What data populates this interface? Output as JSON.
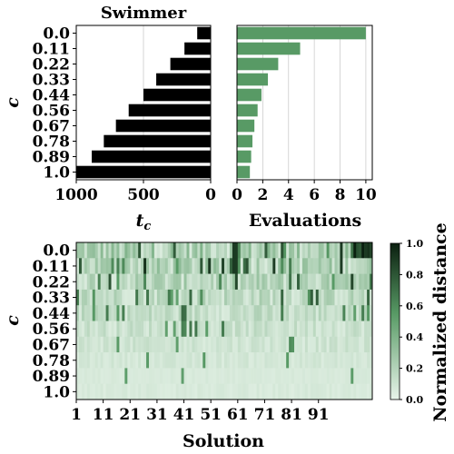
{
  "chart_data": [
    {
      "type": "bar",
      "orientation": "horizontal",
      "title": "Swimmer",
      "ylabel": "c",
      "xlabel": "t_c",
      "categories": [
        "0.0",
        "0.11",
        "0.22",
        "0.33",
        "0.44",
        "0.56",
        "0.67",
        "0.78",
        "0.89",
        "1.0"
      ],
      "values": [
        100,
        195,
        300,
        405,
        500,
        610,
        705,
        795,
        885,
        1000
      ],
      "xlim": [
        1000,
        0
      ],
      "x_inverted": true,
      "xticks": [
        "1000",
        "500",
        "0"
      ],
      "grid": true,
      "color": "#000000"
    },
    {
      "type": "bar",
      "orientation": "horizontal",
      "xlabel": "Evaluations",
      "categories": [
        "0.0",
        "0.11",
        "0.22",
        "0.33",
        "0.44",
        "0.56",
        "0.67",
        "0.78",
        "0.89",
        "1.0"
      ],
      "values": [
        10,
        4.9,
        3.2,
        2.4,
        1.9,
        1.6,
        1.35,
        1.2,
        1.1,
        1.0
      ],
      "xlim": [
        0,
        10.5
      ],
      "xticks": [
        "0",
        "2",
        "4",
        "6",
        "8",
        "10"
      ],
      "grid": true,
      "color": "#589a65"
    },
    {
      "type": "heatmap",
      "ylabel": "c",
      "xlabel": "Solution",
      "y_categories": [
        "0.0",
        "0.11",
        "0.22",
        "0.33",
        "0.44",
        "0.56",
        "0.67",
        "0.78",
        "0.89",
        "1.0"
      ],
      "x_count": 110,
      "xticks": [
        "1",
        "11",
        "21",
        "31",
        "41",
        "51",
        "61",
        "71",
        "81",
        "91"
      ],
      "colorbar": {
        "label": "Normalized distance",
        "range": [
          0.0,
          1.0
        ],
        "ticks": [
          "0.0",
          "0.2",
          "0.4",
          "0.6",
          "0.8",
          "1.0"
        ],
        "color_low": "#e8f4ea",
        "color_mid": "#589a65",
        "color_high": "#0a1f0f"
      }
    }
  ]
}
